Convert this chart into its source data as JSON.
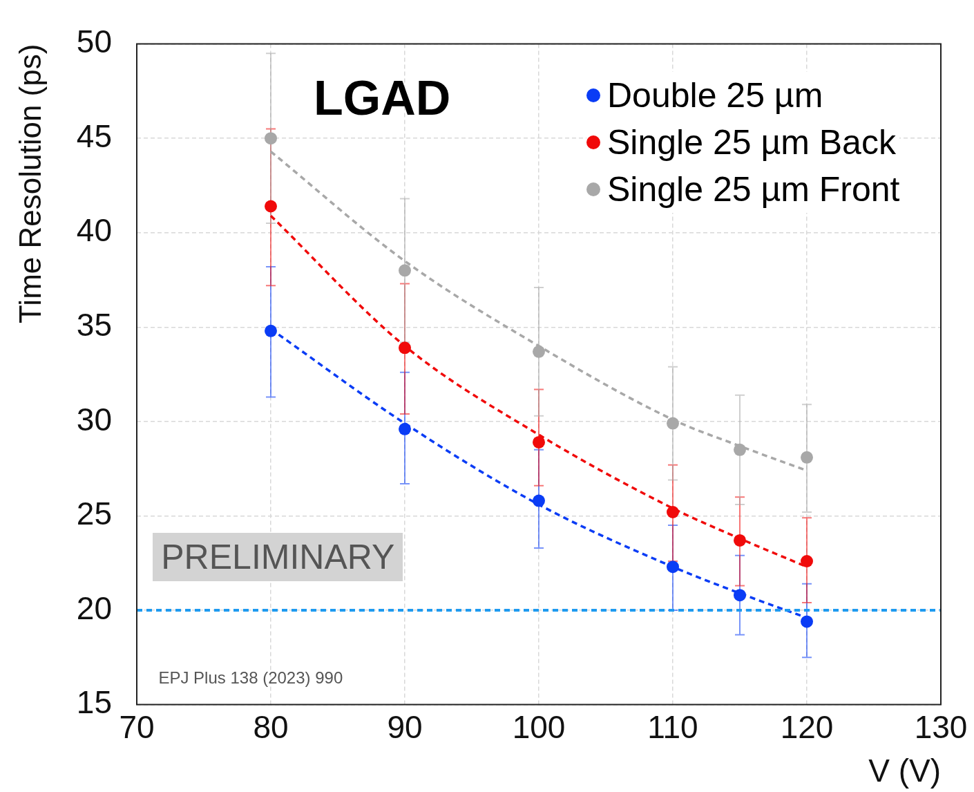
{
  "chart_data": {
    "type": "scatter",
    "xlabel": "V (V)",
    "ylabel": "Time Resolution (ps)",
    "xlim": [
      70,
      130
    ],
    "xticks": [
      70,
      80,
      90,
      100,
      110,
      120,
      130
    ],
    "ylim": [
      15,
      50
    ],
    "yticks": [
      15,
      20,
      25,
      30,
      35,
      40,
      45,
      50
    ],
    "grid": true,
    "legend": "top right",
    "marker": "circle",
    "annotations": [
      "LGAD",
      "PRELIMINARY",
      "EPJ Plus 138 (2023) 990"
    ],
    "ref_lines": [
      {
        "axis": "y",
        "value": 20,
        "color": "#1e9bf0",
        "line_style": "dashed"
      }
    ],
    "series": [
      {
        "name": "Double 25 µm",
        "color": "#0a3cf5",
        "x": [
          80,
          90,
          100,
          110,
          115,
          120
        ],
        "values": [
          34.8,
          29.6,
          25.8,
          22.3,
          20.8,
          19.4
        ],
        "errors": [
          [
            31.3,
            38.2
          ],
          [
            26.7,
            32.6
          ],
          [
            23.3,
            28.5
          ],
          [
            20.0,
            24.5
          ],
          [
            18.7,
            22.9
          ],
          [
            17.5,
            21.4
          ]
        ]
      },
      {
        "name": "Single 25 µm Back",
        "color": "#f00a0a",
        "x": [
          80,
          90,
          100,
          110,
          115,
          120
        ],
        "values": [
          41.4,
          33.9,
          28.9,
          25.2,
          23.7,
          22.6
        ],
        "errors": [
          [
            37.2,
            45.5
          ],
          [
            30.4,
            37.3
          ],
          [
            26.6,
            31.7
          ],
          [
            22.6,
            27.7
          ],
          [
            21.3,
            26.0
          ],
          [
            20.4,
            24.9
          ]
        ]
      },
      {
        "name": "Single 25 µm Front",
        "color": "#a8a8a8",
        "x": [
          80,
          90,
          100,
          110,
          115,
          120
        ],
        "values": [
          45.0,
          38.0,
          33.7,
          29.9,
          28.5,
          28.1
        ],
        "errors": [
          [
            40.5,
            49.5
          ],
          [
            34.2,
            41.8
          ],
          [
            30.3,
            37.1
          ],
          [
            26.9,
            32.9
          ],
          [
            25.6,
            31.4
          ],
          [
            25.2,
            30.9
          ]
        ]
      },
      {
        "color": "#0a3cf5",
        "type": "line",
        "marker": "none",
        "line_style": "dashed",
        "x": [
          80,
          90,
          100,
          110,
          115,
          120
        ],
        "values": [
          34.9,
          29.9,
          25.6,
          22.3,
          20.9,
          19.6
        ]
      },
      {
        "color": "#f00a0a",
        "type": "line",
        "marker": "none",
        "line_style": "dashed",
        "x": [
          80,
          90,
          100,
          110,
          115,
          120
        ],
        "values": [
          40.9,
          34.0,
          29.3,
          25.4,
          23.8,
          22.3
        ]
      },
      {
        "color": "#a8a8a8",
        "type": "line",
        "marker": "none",
        "line_style": "dashed",
        "x": [
          80,
          90,
          100,
          110,
          115,
          120
        ],
        "values": [
          44.3,
          38.5,
          34.0,
          30.1,
          28.7,
          27.4
        ]
      }
    ]
  }
}
